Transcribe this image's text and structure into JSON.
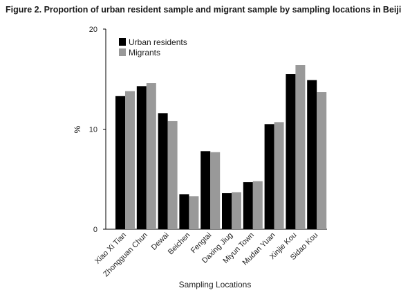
{
  "chart_data": {
    "type": "bar",
    "title": "Figure 2. Proportion of urban resident sample and migrant sample by sampling locations in Beijing",
    "xlabel": "Sampling Locations",
    "ylabel": "%",
    "ylim": [
      0,
      20
    ],
    "yticks": [
      0,
      10,
      20
    ],
    "grid": false,
    "legend_position": "top-left",
    "categories": [
      "Xiao Xi Tian",
      "Zhongguan Chun",
      "Dewai",
      "Beichen",
      "Fengtai",
      "Daxing Jiug",
      "Miyun Town",
      "Mudan Yuan",
      "Xinjie Kou",
      "Sidao Kou"
    ],
    "series": [
      {
        "name": "Urban residents",
        "color": "#000000",
        "values": [
          13.3,
          14.3,
          11.6,
          3.5,
          7.8,
          3.6,
          4.7,
          10.5,
          15.5,
          14.9
        ]
      },
      {
        "name": "Migrants",
        "color": "#999999",
        "values": [
          13.8,
          14.6,
          10.8,
          3.3,
          7.7,
          3.7,
          4.8,
          10.7,
          16.4,
          13.7
        ]
      }
    ]
  }
}
